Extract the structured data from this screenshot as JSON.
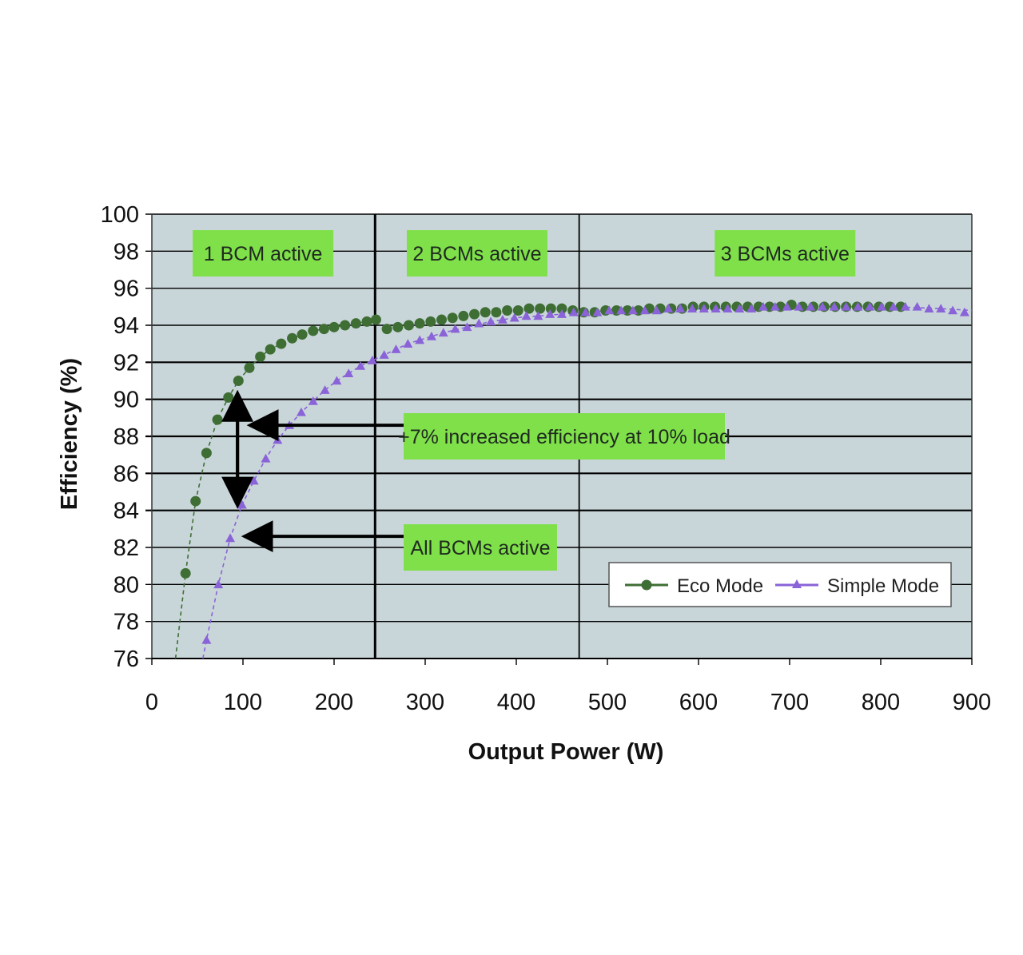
{
  "chart_data": {
    "type": "line",
    "xlabel": "Output Power (W)",
    "ylabel": "Efficiency (%)",
    "xlim": [
      0,
      900
    ],
    "ylim": [
      76,
      100
    ],
    "x_ticks": [
      "0",
      "100",
      "200",
      "300",
      "400",
      "500",
      "600",
      "700",
      "800",
      "900"
    ],
    "y_ticks": [
      "76",
      "78",
      "80",
      "82",
      "84",
      "86",
      "88",
      "90",
      "92",
      "94",
      "96",
      "98",
      "100"
    ],
    "grid": true,
    "legend_position": "bottom-right",
    "colors": {
      "plot_background": "#c9d6d9",
      "grid": "#000000",
      "eco": "#3e6e34",
      "simple": "#8a63d8",
      "annotation_box": "#7fe04a"
    },
    "region_boundaries_x": [
      245,
      469
    ],
    "regions": [
      {
        "label": "1 BCM active",
        "x": 122
      },
      {
        "label": "2 BCMs active",
        "x": 357
      },
      {
        "label": "3 BCMs active",
        "x": 695
      }
    ],
    "series": [
      {
        "name": "Eco Mode",
        "marker": "circle",
        "x": [
          37,
          48,
          60,
          72,
          84,
          95,
          107,
          119,
          130,
          142,
          154,
          165,
          177,
          189,
          200,
          212,
          224,
          236,
          246,
          258,
          270,
          282,
          294,
          306,
          318,
          330,
          342,
          354,
          366,
          378,
          390,
          402,
          414,
          426,
          438,
          450,
          462,
          474,
          486,
          498,
          510,
          522,
          534,
          546,
          558,
          570,
          582,
          594,
          606,
          618,
          630,
          642,
          654,
          666,
          678,
          690,
          702,
          714,
          726,
          738,
          750,
          762,
          774,
          786,
          798,
          810,
          822
        ],
        "y": [
          80.6,
          84.5,
          87.1,
          88.9,
          90.1,
          91.0,
          91.7,
          92.3,
          92.7,
          93.0,
          93.3,
          93.5,
          93.7,
          93.8,
          93.9,
          94.0,
          94.1,
          94.2,
          94.3,
          93.8,
          93.9,
          94.0,
          94.1,
          94.2,
          94.3,
          94.4,
          94.5,
          94.6,
          94.7,
          94.7,
          94.8,
          94.8,
          94.9,
          94.9,
          94.9,
          94.9,
          94.8,
          94.7,
          94.7,
          94.8,
          94.8,
          94.8,
          94.8,
          94.9,
          94.9,
          94.9,
          94.9,
          95.0,
          95.0,
          95.0,
          95.0,
          95.0,
          95.0,
          95.0,
          95.0,
          95.0,
          95.1,
          95.0,
          95.0,
          95.0,
          95.0,
          95.0,
          95.0,
          95.0,
          95.0,
          95.0,
          95.0
        ]
      },
      {
        "name": "Simple Mode",
        "marker": "triangle",
        "x": [
          60,
          73,
          86,
          99,
          112,
          125,
          138,
          151,
          164,
          177,
          190,
          203,
          216,
          229,
          242,
          255,
          268,
          281,
          294,
          307,
          320,
          333,
          346,
          359,
          372,
          385,
          398,
          411,
          424,
          437,
          450,
          463,
          476,
          489,
          502,
          515,
          528,
          541,
          554,
          567,
          580,
          593,
          606,
          619,
          632,
          645,
          658,
          671,
          684,
          697,
          710,
          723,
          736,
          749,
          762,
          775,
          788,
          801,
          814,
          827,
          840,
          853,
          866,
          879,
          892
        ],
        "y": [
          77.0,
          80.0,
          82.5,
          84.3,
          85.6,
          86.8,
          87.8,
          88.6,
          89.3,
          89.9,
          90.5,
          91.0,
          91.4,
          91.8,
          92.1,
          92.4,
          92.7,
          93.0,
          93.2,
          93.4,
          93.6,
          93.8,
          93.9,
          94.1,
          94.2,
          94.3,
          94.4,
          94.5,
          94.5,
          94.6,
          94.6,
          94.7,
          94.7,
          94.7,
          94.8,
          94.8,
          94.8,
          94.8,
          94.8,
          94.9,
          94.9,
          94.9,
          94.9,
          94.9,
          94.9,
          94.9,
          94.9,
          95.0,
          95.0,
          95.0,
          95.0,
          95.0,
          95.0,
          95.0,
          95.0,
          95.0,
          95.0,
          95.0,
          95.0,
          95.0,
          95.0,
          94.9,
          94.9,
          94.8,
          94.7
        ]
      }
    ],
    "trend_lines": [
      {
        "series": "Eco Mode",
        "x": [
          26,
          37,
          48,
          60,
          72,
          84,
          95,
          107,
          119,
          130,
          142,
          154,
          165,
          177,
          189,
          200,
          212,
          224,
          236,
          246
        ],
        "y": [
          76.0,
          80.6,
          84.5,
          87.1,
          88.9,
          90.1,
          91.0,
          91.7,
          92.3,
          92.7,
          93.0,
          93.3,
          93.5,
          93.7,
          93.8,
          93.9,
          94.0,
          94.1,
          94.2,
          94.3
        ]
      },
      {
        "series": "Simple Mode",
        "x": [
          56,
          60,
          73,
          86,
          99,
          112,
          125,
          138,
          151,
          164,
          177,
          190,
          203,
          216,
          229,
          242,
          255,
          268,
          281,
          294,
          320,
          346,
          372,
          398,
          450,
          502,
          554,
          606,
          658,
          710,
          762,
          814,
          866,
          900
        ],
        "y": [
          76.0,
          77.0,
          80.0,
          82.5,
          84.3,
          85.6,
          86.8,
          87.8,
          88.6,
          89.3,
          89.9,
          90.5,
          91.0,
          91.4,
          91.8,
          92.1,
          92.4,
          92.7,
          93.0,
          93.2,
          93.6,
          93.9,
          94.2,
          94.4,
          94.6,
          94.8,
          94.8,
          94.9,
          94.9,
          95.0,
          95.0,
          95.0,
          94.9,
          94.8
        ]
      }
    ],
    "annotations": [
      {
        "text": "+7% increased efficiency at 10% load",
        "arrow_to": [
          104,
          88.6
        ],
        "arrow_from": [
          276,
          88.6
        ]
      },
      {
        "text": "All BCMs active",
        "arrow_to": [
          98,
          82.6
        ],
        "arrow_from": [
          276,
          82.6
        ]
      }
    ],
    "vertical_arrow": {
      "x": 94,
      "y_top": 90.6,
      "y_bottom": 84.0
    }
  }
}
